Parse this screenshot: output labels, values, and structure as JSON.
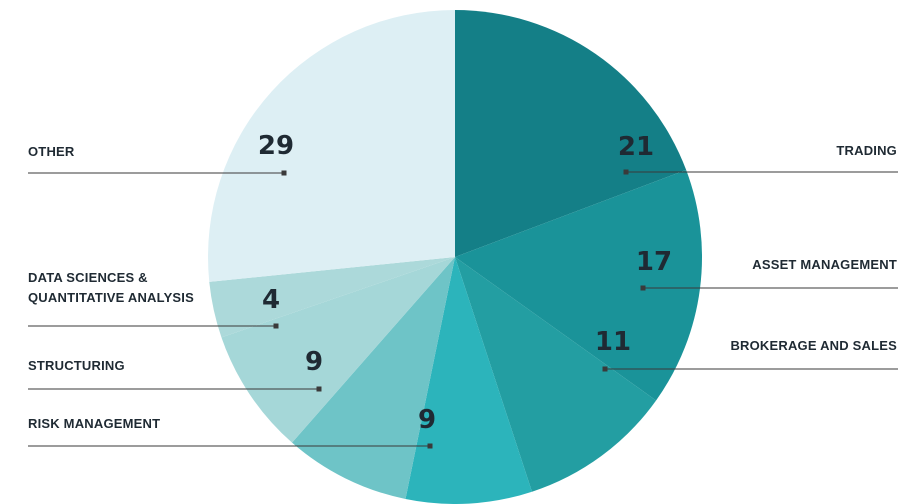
{
  "chart_data": {
    "type": "pie",
    "start_angle_deg": 0,
    "direction": "clockwise",
    "slices": [
      {
        "label": "TRADING",
        "value": 21,
        "value_label": "21",
        "color": "#147f87"
      },
      {
        "label": "ASSET MANAGEMENT",
        "value": 17,
        "value_label": "17",
        "color": "#1a9399"
      },
      {
        "label": "BROKERAGE AND SALES",
        "value": 11,
        "value_label": "11",
        "color": "#239ea2"
      },
      {
        "label": "",
        "value": 9,
        "value_label": "",
        "color": "#2cb4bb"
      },
      {
        "label": "RISK MANAGEMENT",
        "value": 9,
        "value_label": "9",
        "color": "#6ec4c7"
      },
      {
        "label": "STRUCTURING",
        "value": 9,
        "value_label": "9",
        "color": "#a5d7d8"
      },
      {
        "label": "DATA SCIENCES & QUANTITATIVE ANALYSIS",
        "value": 4,
        "value_label": "4",
        "color": "#acd9da"
      },
      {
        "label": "OTHER",
        "value": 29,
        "value_label": "29",
        "color": "#ddeff4"
      }
    ],
    "label_lines": {
      "TRADING": [
        "TRADING"
      ],
      "ASSET MANAGEMENT": [
        "ASSET MANAGEMENT"
      ],
      "BROKERAGE AND SALES": [
        "BROKERAGE AND SALES"
      ],
      "RISK MANAGEMENT": [
        "RISK MANAGEMENT"
      ],
      "STRUCTURING": [
        "STRUCTURING"
      ],
      "DATA SCIENCES & QUANTITATIVE ANALYSIS": [
        "DATA SCIENCES &",
        "QUANTITATIVE ANALYSIS"
      ],
      "OTHER": [
        "OTHER"
      ]
    }
  }
}
